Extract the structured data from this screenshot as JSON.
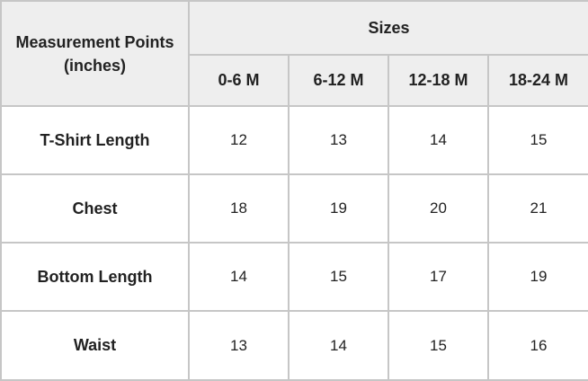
{
  "table": {
    "row_header": "Measurement Points (inches)",
    "group_header": "Sizes",
    "columns": [
      "0-6 M",
      "6-12 M",
      "12-18 M",
      "18-24 M"
    ],
    "rows": [
      {
        "label": "T-Shirt Length",
        "values": [
          "12",
          "13",
          "14",
          "15"
        ]
      },
      {
        "label": "Chest",
        "values": [
          "18",
          "19",
          "20",
          "21"
        ]
      },
      {
        "label": "Bottom Length",
        "values": [
          "14",
          "15",
          "17",
          "19"
        ]
      },
      {
        "label": "Waist",
        "values": [
          "13",
          "14",
          "15",
          "16"
        ]
      }
    ]
  },
  "colors": {
    "header_bg": "#eeeeee",
    "border": "#c6c6c6",
    "text": "#222222"
  }
}
